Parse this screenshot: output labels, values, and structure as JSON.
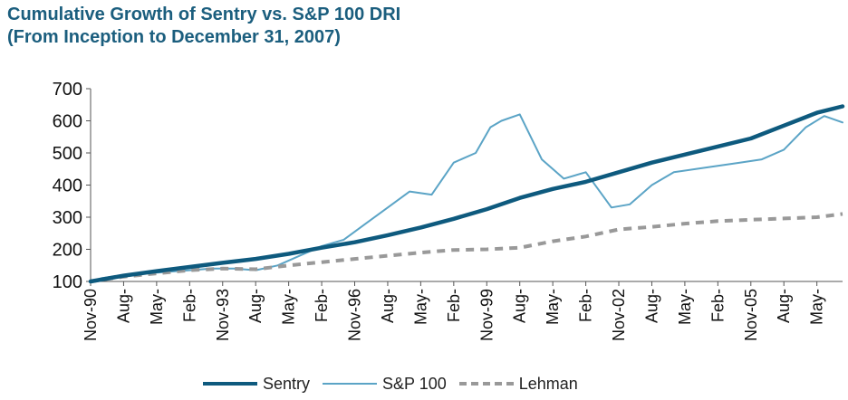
{
  "title_line1": "Cumulative Growth of Sentry vs. S&P 100 DRI",
  "title_line2": "(From Inception to December 31, 2007)",
  "chart_data": {
    "type": "line",
    "title": "Cumulative Growth of Sentry vs. S&P 100 DRI",
    "subtitle": "(From Inception to December 31, 2007)",
    "ylim": [
      100,
      700
    ],
    "y_ticks": [
      100,
      200,
      300,
      400,
      500,
      600,
      700
    ],
    "grid": false,
    "legend_position": "bottom",
    "x_tick_labels": [
      "Nov-90",
      "Aug-",
      "May-",
      "Feb-",
      "Nov-93",
      "Aug-",
      "May-",
      "Feb-",
      "Nov-96",
      "Aug-",
      "May-",
      "Feb-",
      "Nov-99",
      "Aug-",
      "May-",
      "Feb-",
      "Nov-02",
      "Aug-",
      "May-",
      "Feb-",
      "Nov-05",
      "Aug-",
      "May-"
    ],
    "x_range": [
      "Nov-90",
      "Dec-07"
    ],
    "series": [
      {
        "name": "Sentry",
        "color": "#0e5a7e",
        "style": "solid-thick",
        "x": [
          "Nov-90",
          "Aug-91",
          "May-92",
          "Feb-93",
          "Nov-93",
          "Aug-94",
          "May-95",
          "Feb-96",
          "Nov-96",
          "Aug-97",
          "May-98",
          "Feb-99",
          "Nov-99",
          "Aug-00",
          "May-01",
          "Feb-02",
          "Nov-02",
          "Aug-03",
          "May-04",
          "Feb-05",
          "Nov-05",
          "Aug-06",
          "May-07",
          "Dec-07"
        ],
        "values": [
          100,
          118,
          132,
          145,
          158,
          170,
          186,
          205,
          222,
          244,
          268,
          295,
          325,
          360,
          388,
          410,
          440,
          470,
          495,
          520,
          545,
          585,
          625,
          645
        ]
      },
      {
        "name": "S&P 100",
        "color": "#5ba4c6",
        "style": "solid-thin",
        "x": [
          "Nov-90",
          "Feb-91",
          "Aug-91",
          "Feb-92",
          "Aug-92",
          "Feb-93",
          "Aug-93",
          "Feb-94",
          "Aug-94",
          "Feb-95",
          "Aug-95",
          "Feb-96",
          "Aug-96",
          "Feb-97",
          "Aug-97",
          "Feb-98",
          "Aug-98",
          "Feb-99",
          "Aug-99",
          "Dec-99",
          "Mar-00",
          "Aug-00",
          "Feb-01",
          "Aug-01",
          "Feb-02",
          "Sep-02",
          "Feb-03",
          "Aug-03",
          "Feb-04",
          "Aug-04",
          "Feb-05",
          "Aug-05",
          "Feb-06",
          "Aug-06",
          "Feb-07",
          "Jul-07",
          "Dec-07"
        ],
        "values": [
          100,
          110,
          120,
          125,
          130,
          135,
          140,
          140,
          135,
          150,
          180,
          210,
          230,
          280,
          330,
          380,
          370,
          470,
          500,
          580,
          600,
          620,
          480,
          420,
          440,
          330,
          340,
          400,
          440,
          450,
          460,
          470,
          480,
          510,
          580,
          615,
          595
        ]
      },
      {
        "name": "Lehman",
        "color": "#999999",
        "style": "dashed",
        "x": [
          "Nov-90",
          "Aug-91",
          "May-92",
          "Feb-93",
          "Nov-93",
          "Aug-94",
          "May-95",
          "Feb-96",
          "Nov-96",
          "Aug-97",
          "May-98",
          "Feb-99",
          "Nov-99",
          "Aug-00",
          "May-01",
          "Feb-02",
          "Nov-02",
          "Aug-03",
          "May-04",
          "Feb-05",
          "Nov-05",
          "Aug-06",
          "May-07",
          "Dec-07"
        ],
        "values": [
          100,
          115,
          125,
          135,
          140,
          138,
          150,
          160,
          170,
          180,
          190,
          198,
          200,
          205,
          225,
          240,
          262,
          270,
          280,
          288,
          292,
          296,
          300,
          310
        ]
      }
    ]
  }
}
